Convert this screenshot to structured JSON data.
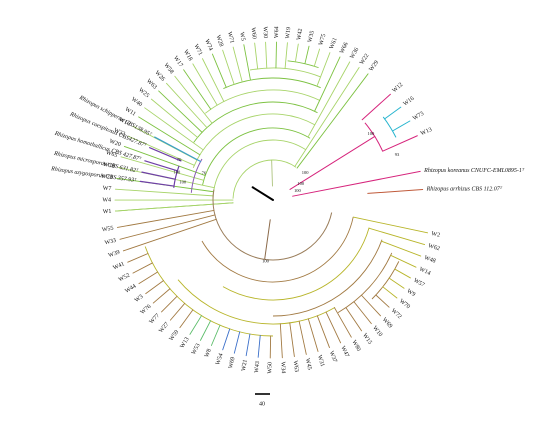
{
  "tree": {
    "clades": [
      {
        "name": "green",
        "color": "#7dc242",
        "tips": [
          "W1",
          "W4",
          "W7",
          "W23",
          "W38",
          "W65",
          "W20",
          "W32",
          "W16",
          "W11",
          "W40",
          "W25",
          "W63",
          "W26",
          "W58",
          "W17",
          "W18",
          "W71",
          "W74",
          "W28",
          "W71",
          "W5",
          "W60",
          "W30",
          "W64",
          "W19",
          "W42",
          "W35",
          "W75",
          "W61",
          "W66",
          "W36",
          "W22",
          "W29"
        ]
      },
      {
        "name": "pink-cyan",
        "color": "#d6247c",
        "accent": "#27b5cf",
        "tips": [
          "W12",
          "W16",
          "W73",
          "W13"
        ]
      },
      {
        "name": "references",
        "color": "#6f3fa7",
        "labels": [
          "Rhizopus koreanus CNUFC-EML0895-1ᵀ",
          "Rhizopus arrhizus CBS 112.07ᵀ",
          "Rhizopus azygosporus CBS 357.93ᵀ",
          "Rhizopus microsporus CBS 631.82ᵀ",
          "Rhizopus homothallicus CBS 427.87ᵀ",
          "Rhizopus caespitosus CBS427.87ᵀ",
          "Rhizopus schipperae CBS138.95ᵀ"
        ]
      },
      {
        "name": "brown-olive",
        "color": "#a27a43",
        "accent": "#b8b52a",
        "tips": [
          "W2",
          "W62",
          "W48",
          "W14",
          "W57",
          "W9",
          "W70",
          "W72",
          "W69",
          "W10",
          "W15",
          "W80",
          "W47",
          "W37",
          "W31",
          "W45",
          "W63",
          "W34",
          "W50",
          "W43",
          "W21",
          "W69",
          "W54",
          "W8",
          "W53",
          "W13",
          "W59",
          "W27",
          "W77",
          "W76",
          "W3",
          "W44",
          "W52",
          "W41",
          "W39",
          "W33",
          "W55"
        ]
      }
    ],
    "bootstrap_labels": [
      "100",
      "100",
      "100",
      "76",
      "100",
      "100",
      "76",
      "93",
      "100",
      "100"
    ],
    "scale_label": "40"
  }
}
